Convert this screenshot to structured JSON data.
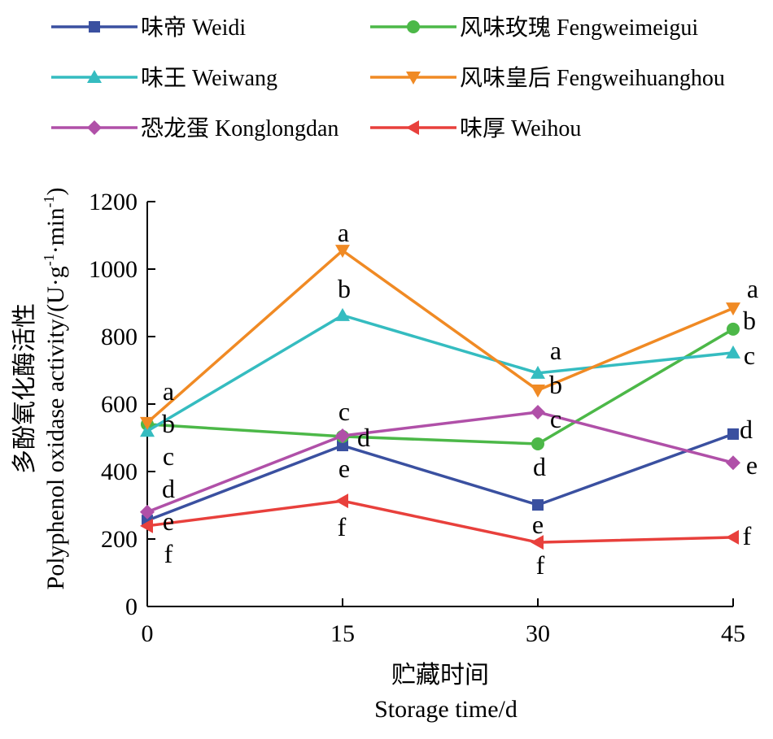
{
  "chart_data": {
    "type": "line",
    "title": "",
    "xlabel_cn": "贮藏时间",
    "xlabel": "Storage time/d",
    "ylabel_cn": "多酚氧化酶活性",
    "ylabel_main": "Polyphenol oxidase activity/(U·g",
    "ylabel_sup1": "-1",
    "ylabel_mid": "·min",
    "ylabel_sup2": "-1",
    "ylabel_end": ")",
    "x": [
      0,
      15,
      30,
      45
    ],
    "x_ticks": [
      "0",
      "15",
      "30",
      "45"
    ],
    "y_ticks": [
      "0",
      "200",
      "400",
      "600",
      "800",
      "1000",
      "1200"
    ],
    "ylim": [
      0,
      1200
    ],
    "xlim": [
      0,
      45
    ],
    "legend_placement": "top",
    "series": [
      {
        "name": "味帝 Weidi",
        "color": "#3a50a0",
        "marker": "square",
        "values": [
          255,
          477,
          301,
          511
        ],
        "letters": [
          "e",
          "e",
          "e",
          "d"
        ]
      },
      {
        "name": "风味玫瑰 Fengweimeigui",
        "color": "#4cb848",
        "marker": "circle",
        "values": [
          540,
          504,
          482,
          822
        ],
        "letters": [
          "b",
          "d",
          "d",
          "b"
        ]
      },
      {
        "name": "味王 Weiwang",
        "color": "#35bcc0",
        "marker": "triangle-up",
        "values": [
          520,
          863,
          692,
          752
        ],
        "letters": [
          "c",
          "b",
          "a",
          "c"
        ]
      },
      {
        "name": "风味皇后 Fengweihuanghou",
        "color": "#f08a24",
        "marker": "triangle-down",
        "values": [
          545,
          1055,
          641,
          884
        ],
        "letters": [
          "a",
          "a",
          "b",
          "a"
        ]
      },
      {
        "name": "恐龙蛋 Konglongdan",
        "color": "#b050a8",
        "marker": "diamond",
        "values": [
          280,
          506,
          576,
          426
        ],
        "letters": [
          "d",
          "c",
          "c",
          "e"
        ]
      },
      {
        "name": "味厚 Weihou",
        "color": "#e8403c",
        "marker": "triangle-left",
        "values": [
          239,
          313,
          190,
          205
        ],
        "letters": [
          "f",
          "f",
          "f",
          "f"
        ]
      }
    ]
  }
}
